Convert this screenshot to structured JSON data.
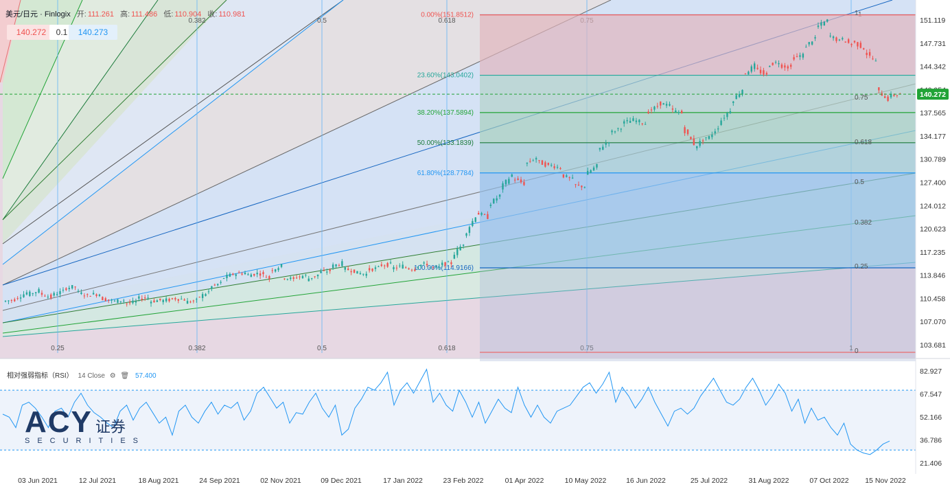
{
  "header": {
    "symbol": "美元/日元 · Finlogix",
    "open_label": "开:",
    "open": "111.261",
    "high_label": "高:",
    "high": "111.486",
    "low_label": "低:",
    "low": "110.904",
    "close_label": "收:",
    "close": "110.981"
  },
  "quote": {
    "bid": "140.272",
    "spread": "0.1",
    "ask": "140.273"
  },
  "rsi": {
    "title": "相对强弱指标（RSI）",
    "params": "14 Close",
    "value": "57.400"
  },
  "logo": {
    "main": "ACY",
    "cn": "证券",
    "sub": "SECURITIES"
  },
  "colors": {
    "up": "#26a69a",
    "down": "#ef5350",
    "line": "#2196f3",
    "accent": "#21a336"
  },
  "chart_data": {
    "type": "candlestick",
    "symbol": "USD/JPY",
    "price_axis": [
      "151.119",
      "147.731",
      "144.342",
      "140.954",
      "137.565",
      "134.177",
      "130.789",
      "127.400",
      "124.012",
      "120.623",
      "117.235",
      "113.846",
      "110.458",
      "107.070",
      "103.681"
    ],
    "last_price": "140.272",
    "date_labels": [
      "03 Jun 2021",
      "12 Jul 2021",
      "18 Aug 2021",
      "24 Sep 2021",
      "02 Nov 2021",
      "09 Dec 2021",
      "17 Jan 2022",
      "23 Feb 2022",
      "01 Apr 2022",
      "10 May 2022",
      "16 Jun 2022",
      "25 Jul 2022",
      "31 Aug 2022",
      "07 Oct 2022",
      "15 Nov 2022"
    ],
    "fib_retracement": [
      {
        "label": "0.00%(151.8512)",
        "price": 151.8512,
        "color": "#ef5350"
      },
      {
        "label": "23.60%(143.0402)",
        "price": 143.0402,
        "color": "#26a69a"
      },
      {
        "label": "38.20%(137.5894)",
        "price": 137.5894,
        "color": "#21a336"
      },
      {
        "label": "50.00%(133.1839)",
        "price": 133.1839,
        "color": "#1b7a3a"
      },
      {
        "label": "61.80%(128.7784)",
        "price": 128.7784,
        "color": "#2196f3"
      },
      {
        "label": "100.00%(114.9166)",
        "price": 114.9166,
        "color": "#1565c0"
      }
    ],
    "fib_time_labels": [
      "0.25",
      "0.382",
      "0.5",
      "0.618",
      "0.75",
      "1"
    ],
    "fan_labels": [
      "1",
      "0.75",
      "0.618",
      "0.5",
      "0.382",
      "0.25",
      "0"
    ],
    "rsi_axis": [
      "82.927",
      "67.547",
      "52.166",
      "36.786",
      "21.406"
    ],
    "rsi_levels": [
      70,
      30
    ],
    "rsi_value": 57.4,
    "ohlc_path": [
      [
        110.0,
        110.3
      ],
      [
        110.4,
        111.3
      ],
      [
        111.0,
        111.6
      ],
      [
        111.2,
        110.6
      ],
      [
        110.9,
        111.5
      ],
      [
        111.9,
        112.2
      ],
      [
        111.5,
        110.8
      ],
      [
        111.0,
        111.1
      ],
      [
        110.5,
        110.1
      ],
      [
        110.0,
        110.2
      ],
      [
        109.7,
        109.9
      ],
      [
        110.4,
        110.6
      ],
      [
        110.0,
        110.2
      ],
      [
        110.1,
        110.3
      ],
      [
        110.5,
        110.3
      ],
      [
        109.9,
        110.1
      ],
      [
        110.5,
        111.4
      ],
      [
        112.0,
        112.7
      ],
      [
        113.3,
        114.0
      ],
      [
        114.0,
        114.2
      ],
      [
        113.8,
        114.1
      ],
      [
        114.3,
        113.4
      ],
      [
        114.5,
        115.2
      ],
      [
        113.6,
        113.2
      ],
      [
        113.5,
        113.8
      ],
      [
        113.2,
        113.9
      ],
      [
        114.2,
        114.5
      ],
      [
        115.1,
        115.6
      ],
      [
        114.8,
        114.5
      ],
      [
        114.2,
        114.0
      ],
      [
        114.6,
        114.9
      ],
      [
        115.3,
        115.4
      ],
      [
        114.8,
        115.2
      ],
      [
        115.0,
        114.7
      ],
      [
        115.2,
        115.5
      ],
      [
        115.0,
        114.9
      ],
      [
        115.4,
        115.6
      ],
      [
        116.5,
        118.5
      ],
      [
        119.5,
        122.5
      ],
      [
        123.0,
        122.3
      ],
      [
        124.0,
        125.5
      ],
      [
        126.5,
        128.5
      ],
      [
        128.0,
        127.2
      ],
      [
        130.0,
        131.0
      ],
      [
        130.5,
        129.8
      ],
      [
        130.0,
        129.5
      ],
      [
        128.5,
        127.8
      ],
      [
        127.0,
        126.8
      ],
      [
        128.5,
        129.8
      ],
      [
        132.0,
        133.5
      ],
      [
        134.5,
        135.5
      ],
      [
        136.0,
        136.5
      ],
      [
        136.5,
        136.0
      ],
      [
        137.5,
        138.5
      ],
      [
        139.0,
        138.6
      ],
      [
        138.0,
        137.5
      ],
      [
        135.5,
        133.0
      ],
      [
        132.5,
        134.0
      ],
      [
        133.5,
        135.5
      ],
      [
        136.0,
        138.0
      ],
      [
        139.0,
        141.0
      ],
      [
        143.0,
        144.5
      ],
      [
        144.0,
        143.0
      ],
      [
        144.5,
        145.0
      ],
      [
        144.5,
        144.2
      ],
      [
        145.5,
        146.0
      ],
      [
        147.0,
        148.5
      ],
      [
        150.0,
        151.0
      ],
      [
        149.0,
        148.0
      ],
      [
        148.5,
        147.5
      ],
      [
        148.0,
        147.0
      ],
      [
        146.5,
        145.0
      ],
      [
        141.0,
        139.5
      ],
      [
        140.0,
        140.3
      ]
    ],
    "rsi_path": [
      54,
      52,
      45,
      60,
      62,
      58,
      52,
      45,
      56,
      58,
      52,
      62,
      68,
      60,
      55,
      52,
      48,
      45,
      56,
      60,
      50,
      58,
      62,
      55,
      48,
      52,
      40,
      56,
      60,
      52,
      48,
      56,
      62,
      54,
      60,
      58,
      62,
      50,
      56,
      68,
      72,
      65,
      58,
      62,
      48,
      55,
      54,
      62,
      68,
      58,
      52,
      60,
      40,
      44,
      58,
      64,
      72,
      70,
      75,
      82,
      60,
      70,
      75,
      68,
      76,
      84,
      62,
      68,
      60,
      56,
      70,
      62,
      52,
      62,
      48,
      56,
      64,
      58,
      55,
      72,
      60,
      52,
      60,
      52,
      48,
      56,
      58,
      60,
      66,
      72,
      75,
      68,
      74,
      82,
      62,
      72,
      66,
      58,
      64,
      72,
      62,
      54,
      46,
      56,
      58,
      54,
      58,
      66,
      72,
      78,
      70,
      62,
      60,
      64,
      72,
      78,
      70,
      60,
      66,
      74,
      68,
      56,
      64,
      48,
      58,
      50,
      52,
      45,
      40,
      48,
      34,
      30,
      28,
      27,
      30,
      34,
      36
    ]
  }
}
